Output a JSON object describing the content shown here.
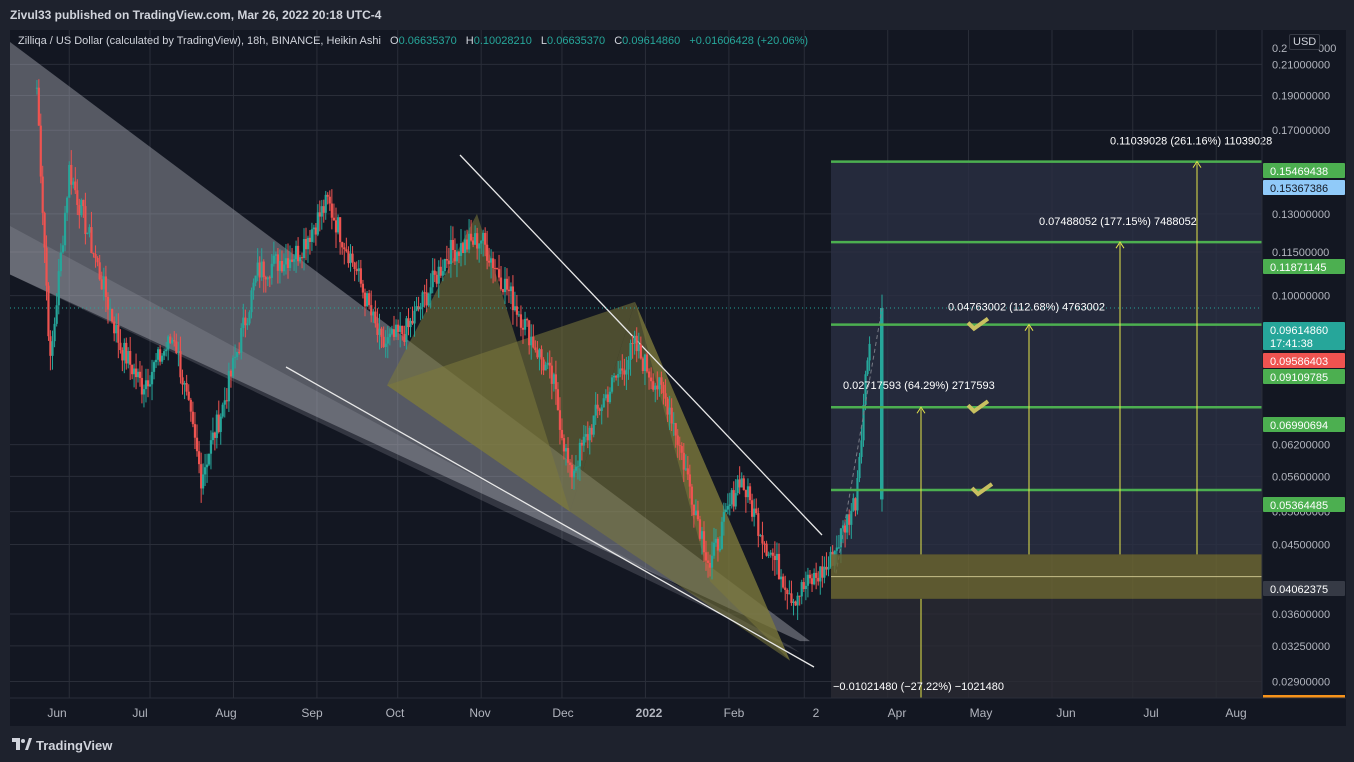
{
  "header": {
    "published": "Zivul33 published on TradingView.com, Mar 26, 2022 20:18 UTC-4"
  },
  "legend": {
    "symbol": "Zilliqa / US Dollar (calculated by TradingView), 18h, BINANCE, Heikin Ashi",
    "o_label": "O",
    "o_value": "0.06635370",
    "h_label": "H",
    "h_value": "0.10028210",
    "l_label": "L",
    "l_value": "0.06635370",
    "c_label": "C",
    "c_value": "0.09614860",
    "change": "+0.01606428 (+20.06%)"
  },
  "currency_button": "USD",
  "footer": {
    "brand": "TradingView"
  },
  "colors": {
    "up": "#26a69a",
    "down": "#ef5350",
    "level": "#4caf50",
    "arrow": "#e5e54a",
    "triangle": "#7d7a3c",
    "wedge": "#b2b5be",
    "bg": "#131722",
    "text": "#d1d4dc"
  },
  "chart_data": {
    "type": "candlestick",
    "price_scale": "log",
    "ylim": [
      0.0275,
      0.23
    ],
    "price_ticks": [
      "0.21000000",
      "0.19000000",
      "0.17000000",
      "0.13000000",
      "0.11500000",
      "0.10000000",
      "0.06200000",
      "0.05600000",
      "0.05000000",
      "0.04500000",
      "0.03600000",
      "0.03250000",
      "0.02900000"
    ],
    "price_ticks_partial": [
      "0.2",
      "000",
      "0.1",
      "000",
      "0.0",
      "000"
    ],
    "time_labels": [
      "Jun",
      "Jul",
      "Aug",
      "Sep",
      "Oct",
      "Nov",
      "Dec",
      "2022",
      "Feb",
      "2",
      "Apr",
      "May",
      "Jun",
      "Jul",
      "Aug"
    ],
    "price_tags": [
      {
        "text": "0.15469438",
        "color": "#4caf50"
      },
      {
        "text": "0.15367386",
        "color": "#90caf9"
      },
      {
        "text": "0.11871145",
        "color": "#4caf50"
      },
      {
        "text": "0.09614860",
        "color": "#26a69a"
      },
      {
        "text": "17:41:38",
        "color": "#26a69a"
      },
      {
        "text": "0.09586403",
        "color": "#ef5350"
      },
      {
        "text": "0.09109785",
        "color": "#4caf50"
      },
      {
        "text": "0.06990694",
        "color": "#4caf50"
      },
      {
        "text": "0.05364485",
        "color": "#4caf50"
      },
      {
        "text": "0.04062375",
        "color": "#363a45"
      }
    ],
    "target_labels": [
      "0.11039028 (261.16%) 11039028",
      "0.07488052 (177.15%) 7488052",
      "0.04763002 (112.68%) 4763002",
      "0.02717593 (64.29%) 2717593",
      "−0.01021480 (−27.22%) −1021480"
    ],
    "levels": [
      0.1537,
      0.1187,
      0.0911,
      0.0699,
      0.0536
    ],
    "entry_zone": [
      0.0378,
      0.0436
    ],
    "entry_line": 0.0406,
    "last_price": 0.0961,
    "swing_points": [
      {
        "t": "2021-05-20",
        "p": 0.195
      },
      {
        "t": "2021-05-25",
        "p": 0.08
      },
      {
        "t": "2021-06-01",
        "p": 0.15
      },
      {
        "t": "2021-06-10",
        "p": 0.115
      },
      {
        "t": "2021-06-20",
        "p": 0.085
      },
      {
        "t": "2021-06-28",
        "p": 0.075
      },
      {
        "t": "2021-07-10",
        "p": 0.088
      },
      {
        "t": "2021-07-20",
        "p": 0.056
      },
      {
        "t": "2021-07-28",
        "p": 0.07
      },
      {
        "t": "2021-08-10",
        "p": 0.108
      },
      {
        "t": "2021-08-25",
        "p": 0.115
      },
      {
        "t": "2021-09-05",
        "p": 0.135
      },
      {
        "t": "2021-09-15",
        "p": 0.11
      },
      {
        "t": "2021-09-25",
        "p": 0.085
      },
      {
        "t": "2021-10-05",
        "p": 0.09
      },
      {
        "t": "2021-10-20",
        "p": 0.115
      },
      {
        "t": "2021-11-01",
        "p": 0.12
      },
      {
        "t": "2021-11-15",
        "p": 0.095
      },
      {
        "t": "2021-11-28",
        "p": 0.075
      },
      {
        "t": "2021-12-04",
        "p": 0.056
      },
      {
        "t": "2021-12-15",
        "p": 0.07
      },
      {
        "t": "2021-12-28",
        "p": 0.085
      },
      {
        "t": "2022-01-10",
        "p": 0.07
      },
      {
        "t": "2022-01-25",
        "p": 0.042
      },
      {
        "t": "2022-02-05",
        "p": 0.056
      },
      {
        "t": "2022-02-15",
        "p": 0.045
      },
      {
        "t": "2022-02-25",
        "p": 0.038
      },
      {
        "t": "2022-03-10",
        "p": 0.042
      },
      {
        "t": "2022-03-20",
        "p": 0.052
      },
      {
        "t": "2022-03-26",
        "p": 0.0961
      }
    ]
  }
}
